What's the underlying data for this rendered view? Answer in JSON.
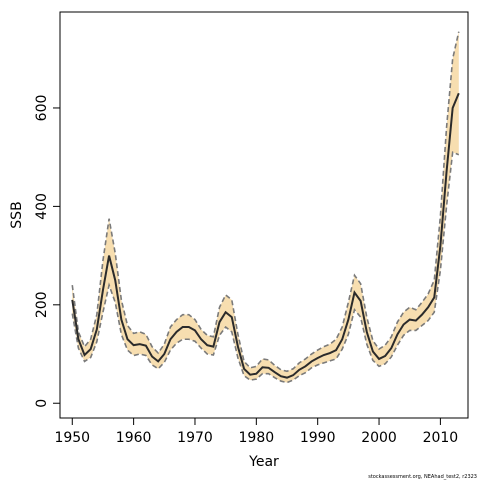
{
  "chart_data": {
    "type": "line",
    "title": "",
    "xlabel": "Year",
    "ylabel": "SSB",
    "xlim": [
      1948,
      2014.5
    ],
    "ylim": [
      -30,
      795
    ],
    "xticks": [
      1950,
      1960,
      1970,
      1980,
      1990,
      2000,
      2010
    ],
    "yticks": [
      0,
      200,
      400,
      600
    ],
    "grid": false,
    "legend": "none",
    "colors": {
      "band": "#f7deb0",
      "line": "#2b2b2b",
      "bound": "#7a7a7a",
      "frame": "#000000"
    },
    "series": [
      {
        "x": [
          1950,
          1951,
          1952,
          1953,
          1954,
          1955,
          1956,
          1957,
          1958,
          1959,
          1960,
          1961,
          1962,
          1963,
          1964,
          1965,
          1966,
          1967,
          1968,
          1969,
          1970,
          1971,
          1972,
          1973,
          1974,
          1975,
          1976,
          1977,
          1978,
          1979,
          1980,
          1981,
          1982,
          1983,
          1984,
          1985,
          1986,
          1987,
          1988,
          1989,
          1990,
          1991,
          1992,
          1993,
          1994,
          1995,
          1996,
          1997,
          1998,
          1999,
          2000,
          2001,
          2002,
          2003,
          2004,
          2005,
          2006,
          2007,
          2008,
          2009,
          2010,
          2011,
          2012,
          2013
        ],
        "y": [
          210,
          130,
          98,
          110,
          150,
          230,
          300,
          250,
          170,
          130,
          118,
          120,
          117,
          95,
          85,
          100,
          130,
          145,
          155,
          155,
          148,
          130,
          118,
          115,
          165,
          185,
          175,
          115,
          70,
          58,
          60,
          73,
          72,
          63,
          55,
          52,
          57,
          68,
          75,
          85,
          92,
          98,
          102,
          108,
          130,
          170,
          225,
          208,
          145,
          105,
          90,
          96,
          112,
          140,
          160,
          170,
          168,
          180,
          195,
          215,
          320,
          470,
          600,
          630
        ]
      },
      {
        "name": "upper",
        "x": [
          1950,
          1951,
          1952,
          1953,
          1954,
          1955,
          1956,
          1957,
          1958,
          1959,
          1960,
          1961,
          1962,
          1963,
          1964,
          1965,
          1966,
          1967,
          1968,
          1969,
          1970,
          1971,
          1972,
          1973,
          1974,
          1975,
          1976,
          1977,
          1978,
          1979,
          1980,
          1981,
          1982,
          1983,
          1984,
          1985,
          1986,
          1987,
          1988,
          1989,
          1990,
          1991,
          1992,
          1993,
          1994,
          1995,
          1996,
          1997,
          1998,
          1999,
          2000,
          2001,
          2002,
          2003,
          2004,
          2005,
          2006,
          2007,
          2008,
          2009,
          2010,
          2011,
          2012,
          2013
        ],
        "y": [
          240,
          145,
          115,
          130,
          180,
          290,
          375,
          305,
          210,
          158,
          142,
          145,
          140,
          115,
          102,
          120,
          155,
          170,
          180,
          180,
          170,
          150,
          138,
          135,
          195,
          220,
          210,
          140,
          85,
          72,
          75,
          90,
          88,
          77,
          68,
          65,
          70,
          82,
          90,
          100,
          108,
          115,
          120,
          130,
          155,
          205,
          260,
          243,
          175,
          127,
          110,
          118,
          135,
          165,
          185,
          195,
          190,
          205,
          222,
          250,
          380,
          560,
          700,
          755
        ]
      },
      {
        "name": "lower",
        "x": [
          1950,
          1951,
          1952,
          1953,
          1954,
          1955,
          1956,
          1957,
          1958,
          1959,
          1960,
          1961,
          1962,
          1963,
          1964,
          1965,
          1966,
          1967,
          1968,
          1969,
          1970,
          1971,
          1972,
          1973,
          1974,
          1975,
          1976,
          1977,
          1978,
          1979,
          1980,
          1981,
          1982,
          1983,
          1984,
          1985,
          1986,
          1987,
          1988,
          1989,
          1990,
          1991,
          1992,
          1993,
          1994,
          1995,
          1996,
          1997,
          1998,
          1999,
          2000,
          2001,
          2002,
          2003,
          2004,
          2005,
          2006,
          2007,
          2008,
          2009,
          2010,
          2011,
          2012,
          2013
        ],
        "y": [
          182,
          112,
          85,
          93,
          125,
          185,
          240,
          205,
          140,
          108,
          97,
          100,
          97,
          78,
          70,
          83,
          108,
          122,
          130,
          130,
          126,
          112,
          100,
          98,
          138,
          155,
          145,
          92,
          56,
          47,
          49,
          60,
          60,
          52,
          45,
          42,
          47,
          56,
          62,
          72,
          78,
          82,
          86,
          90,
          110,
          140,
          190,
          175,
          120,
          87,
          75,
          80,
          94,
          118,
          138,
          148,
          148,
          158,
          168,
          185,
          270,
          400,
          510,
          505
        ]
      }
    ],
    "credit": "stockassessment.org, NEAhad_test2, r2323"
  }
}
